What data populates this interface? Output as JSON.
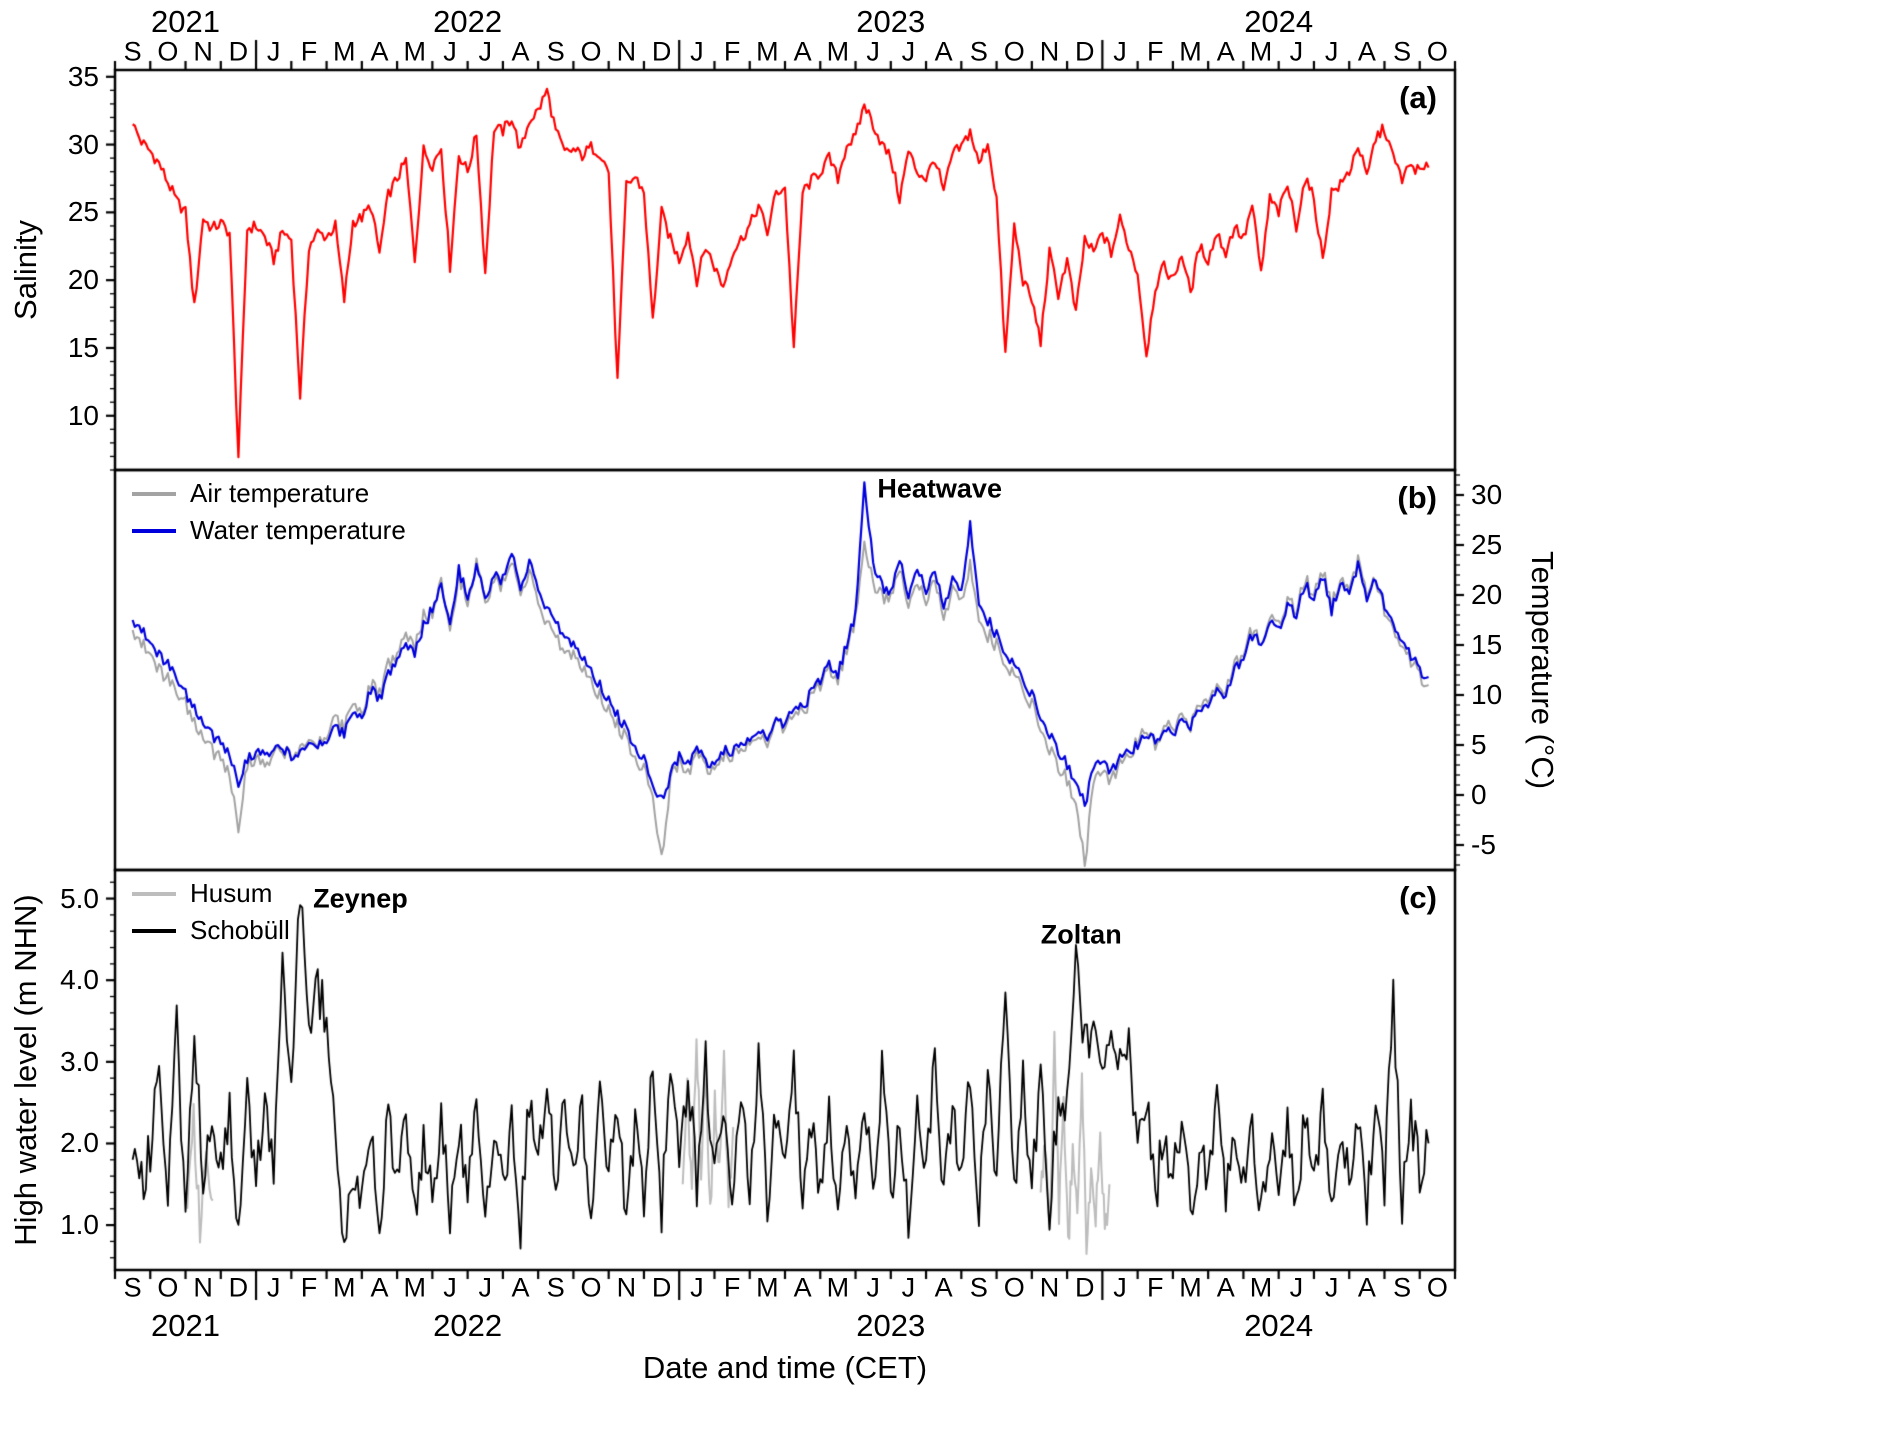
{
  "axes": {
    "xlabel": "Date and time (CET)",
    "x_months_total": 38,
    "x_origin": "2021-09-01",
    "month_letters": [
      "S",
      "O",
      "N",
      "D",
      "J",
      "F",
      "M",
      "A",
      "M",
      "J",
      "J",
      "A",
      "S",
      "O",
      "N",
      "D",
      "J",
      "F",
      "M",
      "A",
      "M",
      "J",
      "J",
      "A",
      "S",
      "O",
      "N",
      "D",
      "J",
      "F",
      "M",
      "A",
      "M",
      "J",
      "J",
      "A",
      "S",
      "O"
    ],
    "years": [
      {
        "label": "2021",
        "x": 2
      },
      {
        "label": "2022",
        "x": 10
      },
      {
        "label": "2023",
        "x": 22
      },
      {
        "label": "2024",
        "x": 33
      }
    ],
    "year_boundaries": [
      4,
      16,
      28
    ]
  },
  "chart_data": [
    {
      "id": "salinity",
      "type": "line",
      "panel_label": "(a)",
      "title": "",
      "xlabel": "Date and time (CET)",
      "ylabel": "Salinity",
      "x_unit": "months since 2021-09-01",
      "xlim": [
        0,
        38
      ],
      "ylim": [
        6,
        35.5
      ],
      "yticks": [
        10,
        15,
        20,
        25,
        30,
        35
      ],
      "ytick_labels": [
        "10",
        "15",
        "20",
        "25",
        "30",
        "35"
      ],
      "ytick_minor": 1,
      "grid": false,
      "annotations": [],
      "series": [
        {
          "name": "Salinity",
          "color": "#ff0000",
          "line_width": 2.2,
          "jitter": 0.45,
          "substeps": 4,
          "x_start": 0.5,
          "x_step": 0.25,
          "values": [
            31.5,
            30.2,
            29.5,
            28.6,
            27.2,
            25.8,
            25.0,
            18.0,
            24.6,
            23.8,
            24.2,
            23.5,
            7.0,
            23.8,
            24.0,
            23.2,
            21.5,
            23.6,
            23.0,
            11.5,
            22.5,
            23.5,
            23.2,
            24.0,
            18.5,
            24.3,
            24.6,
            25.5,
            22.0,
            26.3,
            27.5,
            28.8,
            21.5,
            29.6,
            28.5,
            29.8,
            21.0,
            29.3,
            28.0,
            30.8,
            20.5,
            31.2,
            31.0,
            32.0,
            29.5,
            31.8,
            32.5,
            34.0,
            31.0,
            29.4,
            29.6,
            29.2,
            29.8,
            29.4,
            28.0,
            12.5,
            27.0,
            27.6,
            26.5,
            17.0,
            25.0,
            23.0,
            21.5,
            23.5,
            20.0,
            22.5,
            21.0,
            19.5,
            22.0,
            23.0,
            24.0,
            25.5,
            23.5,
            26.5,
            26.8,
            15.0,
            26.5,
            27.3,
            28.0,
            29.0,
            27.5,
            30.0,
            30.5,
            33.0,
            31.5,
            30.0,
            29.0,
            26.0,
            29.5,
            28.0,
            27.5,
            29.0,
            26.5,
            29.3,
            29.8,
            31.0,
            28.5,
            30.2,
            26.0,
            14.5,
            24.0,
            20.0,
            18.5,
            15.5,
            22.0,
            19.0,
            21.5,
            17.5,
            23.0,
            22.0,
            23.5,
            22.0,
            24.5,
            22.5,
            20.5,
            14.5,
            19.5,
            21.0,
            20.0,
            22.0,
            19.0,
            22.5,
            21.5,
            23.5,
            22.0,
            24.0,
            23.0,
            25.5,
            20.5,
            26.0,
            25.0,
            27.0,
            24.0,
            27.5,
            26.0,
            21.5,
            26.5,
            27.0,
            28.0,
            30.0,
            27.5,
            30.5,
            31.2,
            29.0,
            27.5,
            28.5,
            28.0,
            28.3
          ]
        }
      ]
    },
    {
      "id": "temperature",
      "type": "line",
      "panel_label": "(b)",
      "title": "",
      "ylabel": "Temperature (°C)",
      "x_unit": "months since 2021-09-01",
      "xlim": [
        0,
        38
      ],
      "ylim": [
        -7.5,
        32.5
      ],
      "yticks": [
        -5,
        0,
        5,
        10,
        15,
        20,
        25,
        30
      ],
      "ytick_labels": [
        "-5",
        "0",
        "5",
        "10",
        "15",
        "20",
        "25",
        "30"
      ],
      "ytick_minor": 1,
      "grid": false,
      "legend_position": "top-left",
      "annotations": [
        {
          "text": "Heatwave",
          "x": 21.45,
          "y": 30.6,
          "align": "left"
        }
      ],
      "series": [
        {
          "name": "Air temperature",
          "color": "#a3a3a3",
          "line_width": 2,
          "jitter": 0.8,
          "substeps": 4,
          "x_start": 0.5,
          "x_step": 0.25,
          "values": [
            16.5,
            15.5,
            14.5,
            12.5,
            11.5,
            10.0,
            9.0,
            7.0,
            5.5,
            4.5,
            4.0,
            2.0,
            -3.5,
            3.0,
            4.0,
            2.5,
            3.8,
            4.5,
            4.2,
            5.0,
            5.5,
            5.2,
            6.0,
            8.0,
            6.5,
            9.5,
            8.5,
            11.0,
            10.0,
            13.0,
            14.0,
            16.0,
            14.5,
            18.0,
            18.0,
            21.5,
            17.0,
            22.0,
            19.5,
            23.5,
            19.0,
            21.5,
            21.0,
            23.0,
            20.0,
            22.5,
            18.5,
            17.0,
            15.5,
            14.5,
            14.0,
            13.0,
            11.5,
            10.0,
            8.5,
            7.0,
            5.5,
            4.0,
            2.5,
            0.0,
            -6.5,
            1.5,
            3.5,
            2.0,
            4.0,
            3.0,
            2.5,
            4.0,
            3.5,
            5.0,
            4.5,
            6.0,
            5.5,
            7.5,
            6.5,
            8.5,
            8.0,
            10.0,
            11.0,
            12.5,
            11.5,
            14.5,
            17.5,
            25.0,
            21.0,
            20.0,
            19.5,
            22.5,
            18.5,
            21.0,
            19.5,
            21.0,
            18.0,
            20.5,
            19.0,
            23.0,
            18.0,
            16.0,
            15.0,
            13.5,
            12.0,
            10.5,
            9.0,
            7.0,
            4.5,
            3.0,
            1.5,
            -0.5,
            -7.0,
            1.0,
            2.5,
            1.0,
            3.5,
            4.0,
            5.5,
            6.5,
            5.0,
            7.0,
            6.5,
            8.0,
            7.0,
            9.0,
            9.5,
            11.5,
            10.5,
            13.0,
            14.5,
            16.5,
            15.0,
            18.0,
            17.0,
            19.5,
            18.5,
            21.5,
            20.0,
            22.5,
            19.0,
            22.0,
            21.0,
            23.5,
            20.0,
            22.0,
            18.5,
            16.5,
            15.0,
            13.5,
            12.0,
            11.0
          ]
        },
        {
          "name": "Water temperature",
          "color": "#0000dd",
          "line_width": 2.2,
          "jitter": 0.6,
          "substeps": 4,
          "x_start": 0.5,
          "x_step": 0.25,
          "values": [
            17.5,
            16.8,
            15.5,
            14.0,
            13.0,
            11.5,
            10.0,
            8.5,
            7.0,
            6.0,
            5.5,
            4.0,
            1.0,
            3.5,
            4.5,
            3.8,
            4.2,
            4.8,
            4.0,
            4.5,
            5.2,
            5.0,
            5.5,
            7.0,
            6.0,
            8.5,
            8.0,
            10.5,
            9.5,
            12.0,
            13.5,
            15.0,
            14.0,
            17.0,
            18.5,
            21.0,
            17.5,
            22.5,
            20.0,
            23.0,
            19.5,
            22.0,
            21.5,
            24.0,
            20.5,
            23.5,
            20.0,
            18.5,
            17.0,
            16.0,
            15.0,
            14.0,
            12.5,
            11.0,
            9.5,
            8.0,
            6.5,
            5.0,
            3.5,
            1.0,
            -0.5,
            2.0,
            4.0,
            3.0,
            4.5,
            3.5,
            3.0,
            4.5,
            4.0,
            5.5,
            5.0,
            6.5,
            6.0,
            7.5,
            7.0,
            9.0,
            8.5,
            10.5,
            11.5,
            13.0,
            12.0,
            15.0,
            18.0,
            31.0,
            23.0,
            21.0,
            20.0,
            23.5,
            19.5,
            22.5,
            20.5,
            22.0,
            19.0,
            21.5,
            20.0,
            27.0,
            19.5,
            17.5,
            16.0,
            14.5,
            13.0,
            11.5,
            10.0,
            8.0,
            6.0,
            4.5,
            3.0,
            1.5,
            -1.0,
            2.5,
            3.5,
            2.0,
            4.0,
            4.5,
            5.0,
            6.0,
            5.5,
            6.5,
            6.0,
            7.5,
            7.0,
            8.5,
            9.0,
            11.0,
            10.0,
            12.5,
            14.0,
            16.0,
            15.0,
            17.5,
            16.5,
            19.0,
            18.0,
            21.0,
            19.5,
            22.0,
            18.5,
            21.5,
            20.5,
            23.0,
            19.5,
            22.0,
            19.0,
            17.0,
            15.5,
            14.0,
            12.5,
            11.8
          ]
        }
      ]
    },
    {
      "id": "high_water_level",
      "type": "line",
      "panel_label": "(c)",
      "title": "",
      "ylabel": "High water level (m NHN)",
      "x_unit": "months since 2021-09-01",
      "xlim": [
        0,
        38
      ],
      "ylim": [
        0.45,
        5.35
      ],
      "yticks": [
        1,
        2,
        3,
        4,
        5
      ],
      "ytick_labels": [
        "1.0",
        "2.0",
        "3.0",
        "4.0",
        "5.0"
      ],
      "ytick_minor": 0.2,
      "grid": false,
      "legend_position": "top-left",
      "annotations": [
        {
          "text": "Zeynep",
          "x": 5.45,
          "y": 5.0,
          "align": "left"
        },
        {
          "text": "Zoltan",
          "x": 27.4,
          "y": 4.55,
          "align": "center"
        }
      ],
      "series": [
        {
          "name": "Husum",
          "color": "#bdbdbd",
          "line_width": 2,
          "jitter": 0.2,
          "substeps": 4,
          "segments": [
            {
              "x_start": 2.05,
              "x_step": 0.18,
              "values": [
                1.2,
                2.3,
                0.95,
                1.9,
                1.3
              ]
            },
            {
              "x_start": 16.1,
              "x_step": 0.13,
              "values": [
                1.5,
                2.6,
                1.3,
                3.3,
                1.7,
                2.9,
                1.2,
                2.5,
                1.6,
                3.0,
                1.3,
                2.2
              ]
            },
            {
              "x_start": 26.25,
              "x_step": 0.13,
              "values": [
                1.4,
                2.1,
                0.8,
                3.2,
                1.2,
                2.4,
                0.7,
                2.0,
                1.0,
                2.8,
                0.75,
                1.6,
                1.1,
                2.2,
                0.9,
                1.5
              ]
            }
          ]
        },
        {
          "name": "Schobüll",
          "color": "#000000",
          "line_width": 1.8,
          "jitter": 0.3,
          "substeps": 4,
          "x_start": 0.5,
          "x_step": 0.25,
          "values": [
            1.8,
            1.5,
            1.9,
            2.95,
            1.5,
            3.4,
            0.95,
            3.35,
            1.6,
            2.2,
            1.8,
            2.4,
            0.75,
            2.6,
            1.6,
            2.5,
            1.8,
            4.1,
            2.5,
            5.2,
            3.2,
            3.9,
            3.55,
            1.9,
            0.7,
            1.6,
            1.3,
            2.2,
            1.0,
            2.4,
            1.6,
            2.5,
            1.2,
            2.0,
            1.4,
            2.3,
            1.1,
            2.2,
            1.5,
            2.4,
            1.2,
            2.1,
            1.4,
            2.2,
            1.0,
            2.5,
            1.7,
            2.9,
            1.3,
            2.6,
            1.5,
            2.4,
            1.1,
            2.9,
            1.6,
            2.5,
            1.0,
            2.3,
            1.4,
            2.9,
            1.2,
            2.7,
            1.8,
            2.9,
            1.5,
            3.0,
            1.6,
            2.5,
            1.2,
            2.8,
            1.5,
            3.0,
            1.3,
            2.4,
            1.6,
            3.0,
            1.2,
            2.3,
            1.4,
            2.4,
            1.1,
            2.2,
            1.5,
            2.6,
            1.2,
            2.9,
            1.4,
            2.3,
            1.0,
            2.5,
            1.6,
            3.0,
            1.3,
            2.6,
            1.5,
            2.8,
            1.2,
            2.7,
            1.7,
            3.65,
            1.4,
            2.8,
            1.5,
            2.7,
            1.2,
            2.5,
            2.6,
            4.2,
            3.3,
            3.4,
            2.8,
            3.4,
            2.9,
            3.2,
            1.8,
            2.6,
            1.3,
            2.2,
            1.5,
            2.4,
            1.1,
            2.0,
            1.4,
            2.6,
            1.2,
            2.3,
            1.5,
            2.2,
            1.1,
            2.1,
            1.4,
            2.3,
            1.2,
            2.4,
            1.5,
            2.5,
            1.1,
            2.2,
            1.6,
            2.4,
            1.2,
            2.6,
            1.5,
            3.8,
            1.3,
            2.4,
            1.6,
            2.0
          ]
        }
      ]
    }
  ]
}
